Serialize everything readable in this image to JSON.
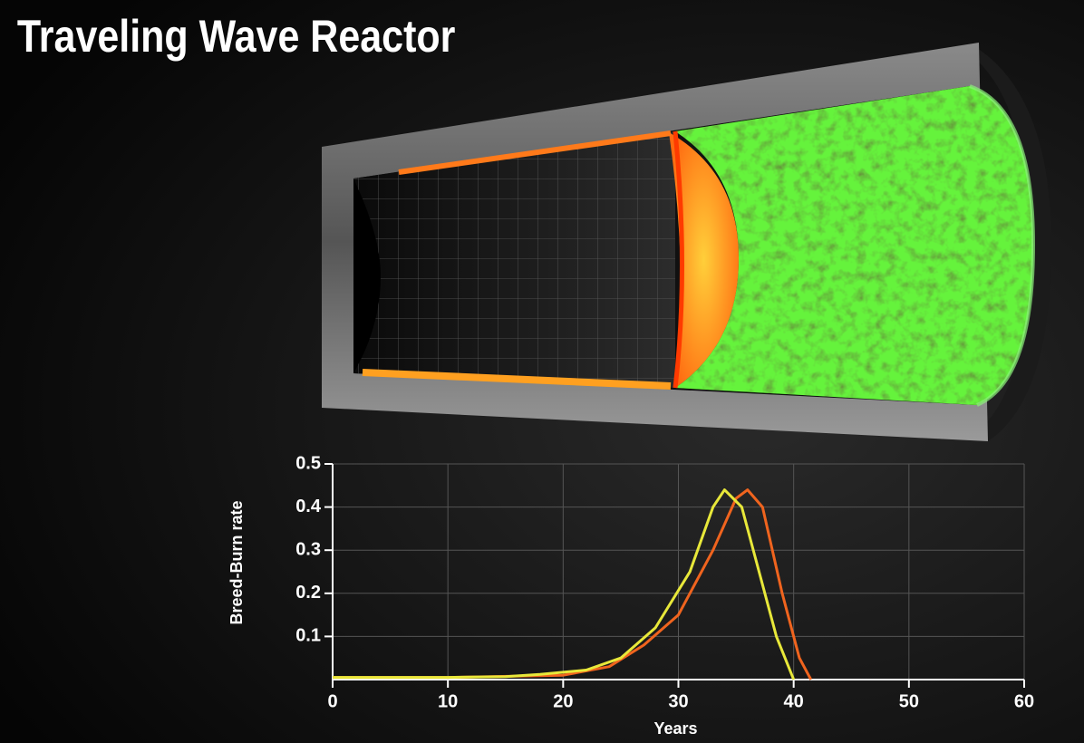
{
  "chart_data": {
    "type": "line",
    "title": "Traveling Wave Reactor",
    "ylabel": "Breed-Burn rate",
    "xlabel": "Years",
    "xlim": [
      0,
      60
    ],
    "xticks": [
      0,
      10,
      20,
      30,
      40,
      50,
      60
    ],
    "ylim": [
      0,
      0.5
    ],
    "yticks": [
      0.1,
      0.2,
      0.3,
      0.4,
      0.5
    ],
    "grid": true,
    "series": [
      {
        "color": "#e8e83a",
        "x": [
          0,
          10,
          15,
          18,
          22,
          25,
          28,
          31,
          33,
          34,
          35.5,
          37,
          38.5,
          40
        ],
        "values": [
          0.005,
          0.005,
          0.007,
          0.012,
          0.022,
          0.05,
          0.12,
          0.25,
          0.4,
          0.44,
          0.4,
          0.25,
          0.1,
          0
        ]
      },
      {
        "color": "#f0641e",
        "x": [
          0,
          10,
          20,
          24,
          27,
          30,
          33,
          35,
          36,
          37.3,
          39,
          40.5,
          41.5
        ],
        "values": [
          0.005,
          0.005,
          0.01,
          0.03,
          0.08,
          0.15,
          0.3,
          0.42,
          0.44,
          0.4,
          0.2,
          0.05,
          0
        ]
      }
    ]
  }
}
